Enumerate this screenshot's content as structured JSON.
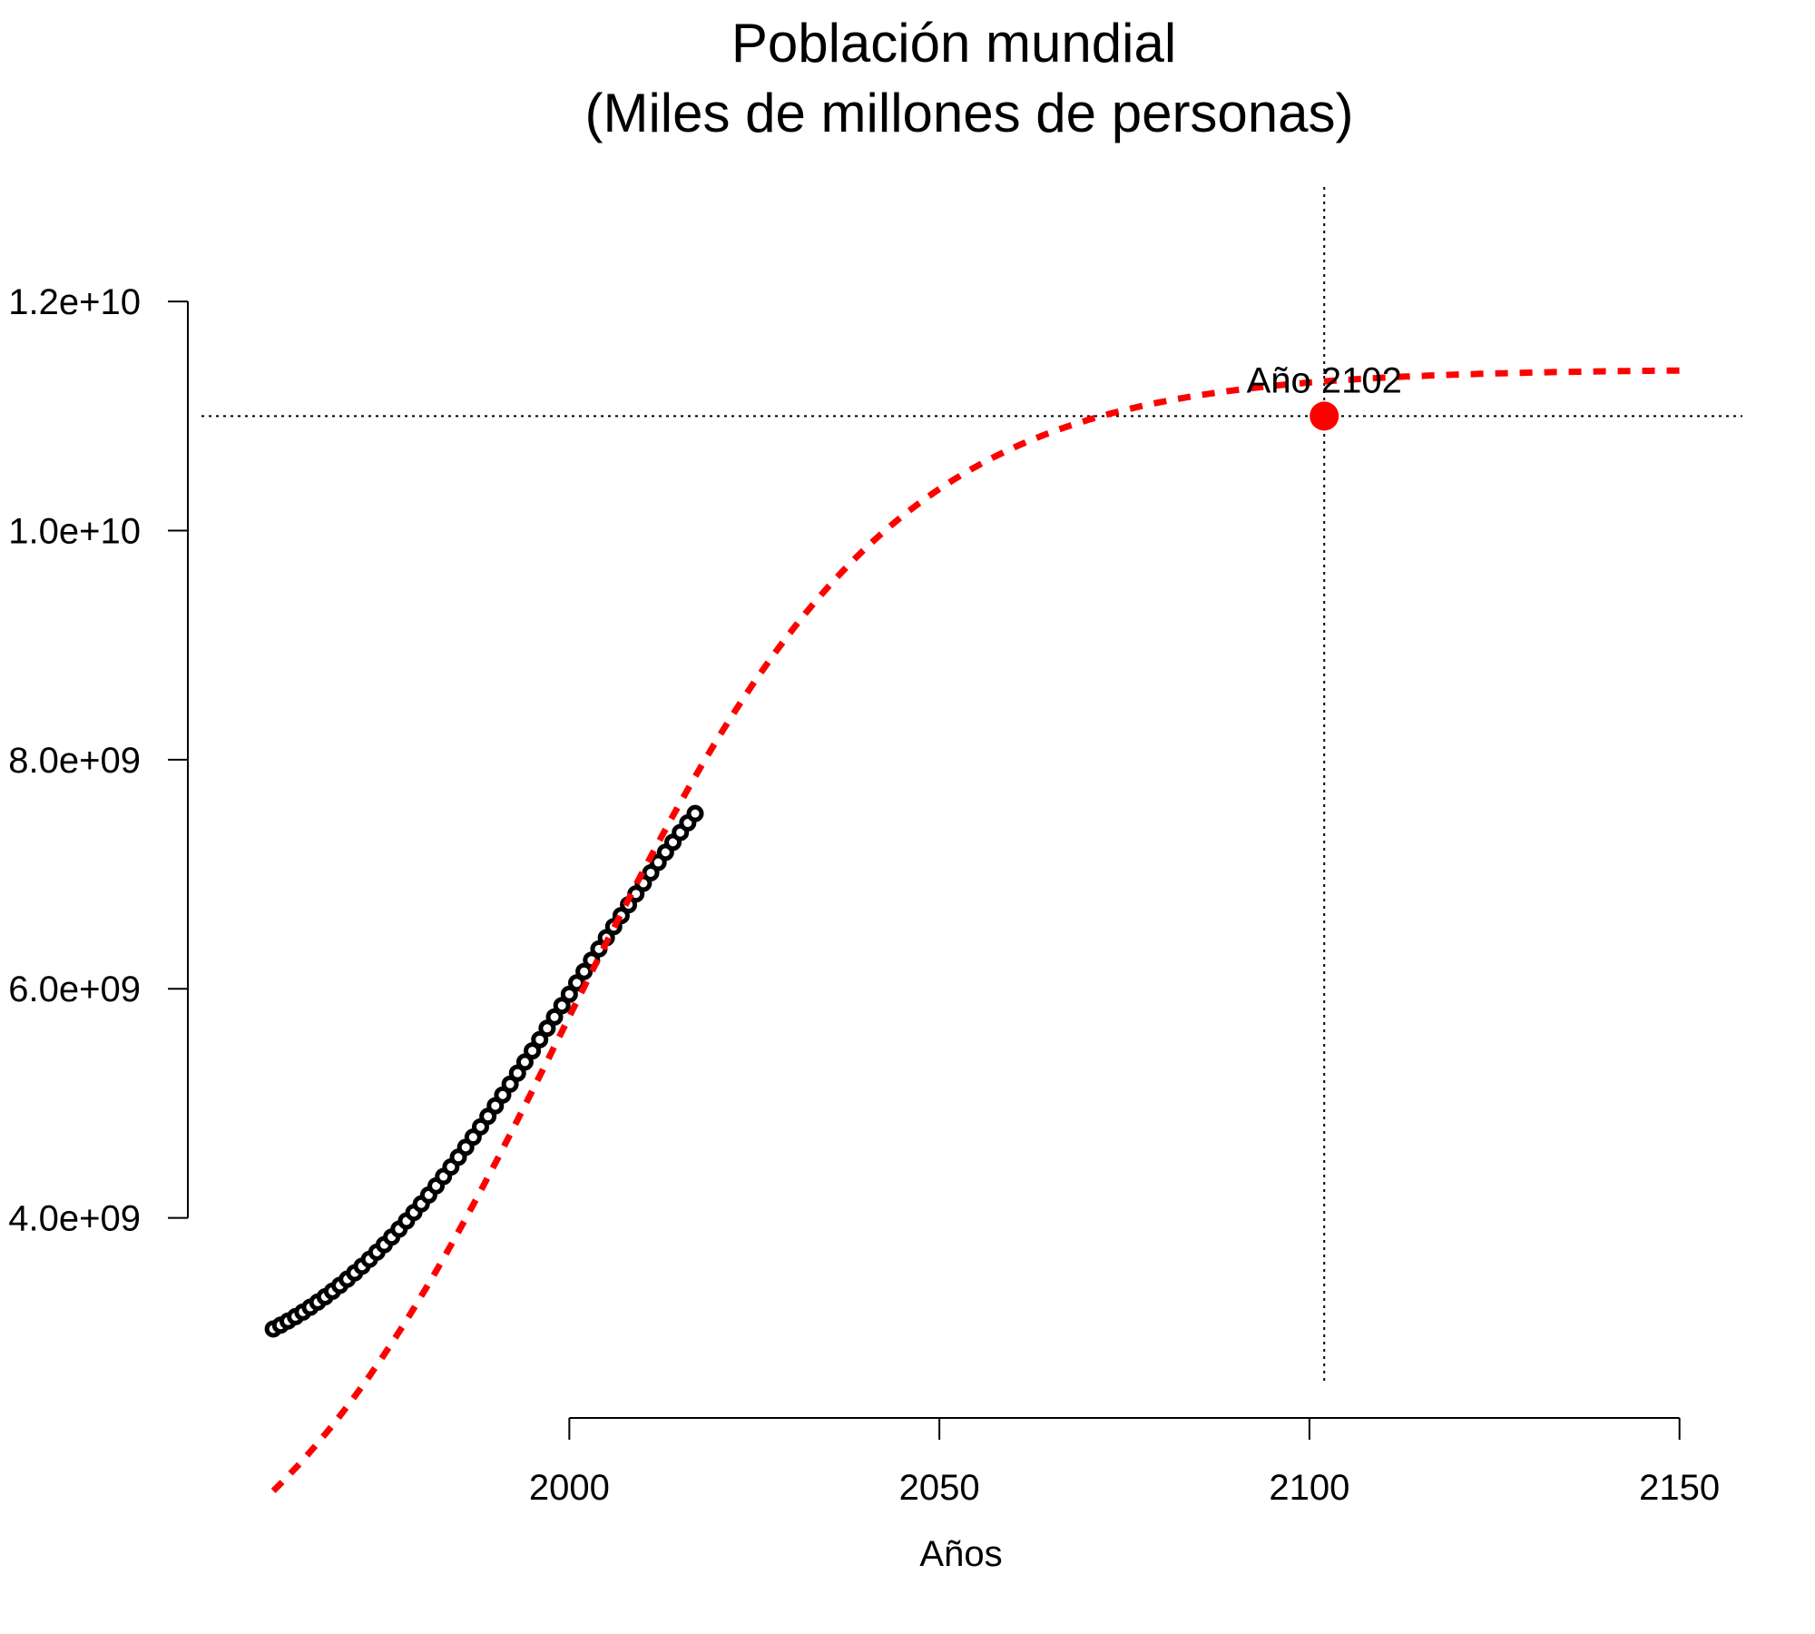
{
  "chart_data": {
    "type": "line",
    "title": "Población mundial",
    "subtitle": "(Miles de millones de personas)",
    "xlabel": "Años",
    "ylabel": "",
    "xlim": [
      1947.6,
      2158.5
    ],
    "ylim": [
      2570000000.0,
      13000000000.0
    ],
    "x_ticks": [
      2000,
      2050,
      2100,
      2150
    ],
    "x_tick_labels": [
      "2000",
      "2050",
      "2100",
      "2150"
    ],
    "y_ticks": [
      4000000000.0,
      6000000000.0,
      8000000000.0,
      10000000000.0,
      12000000000.0
    ],
    "y_tick_labels": [
      "4.0e+09",
      "6.0e+09",
      "8.0e+09",
      "1.0e+10",
      "1.2e+10"
    ],
    "grid": false,
    "colors": {
      "observed": "#000000",
      "fit": "#ff0000",
      "refline": "#000000"
    },
    "observed": {
      "x_start": 1960,
      "x_end": 2017,
      "start_value": 3030000000.0,
      "end_value": 7530000000.0
    },
    "fit_model": {
      "kind": "logistic",
      "asymptote": 11410000000.0,
      "midpoint_year": 1999.6,
      "rate": 0.0455,
      "x_start": 1960,
      "x_end": 2150
    },
    "reference_lines": {
      "vertical_x": 2102,
      "horizontal_y": 11000000000.0
    },
    "highlight_point": {
      "x": 2102,
      "y": 11000000000.0,
      "label": "Año 2102"
    }
  }
}
